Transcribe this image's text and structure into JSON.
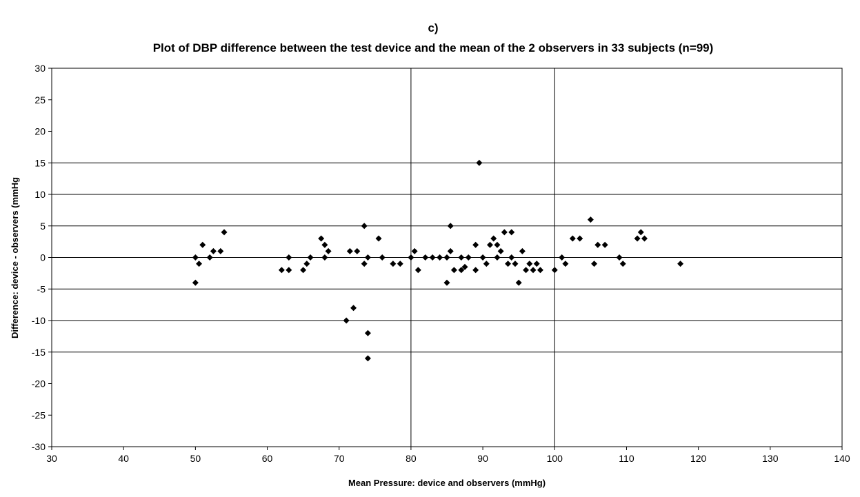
{
  "chart_data": {
    "type": "scatter",
    "panel_label": "c)",
    "title": "Plot of DBP difference between the test device and the mean of  the 2 observers in 33 subjects (n=99)",
    "xlabel": "Mean Pressure: device and observers (mmHg)",
    "ylabel": "Difference: device - observers (mmHg",
    "xlim": [
      30,
      140
    ],
    "ylim": [
      -30,
      30
    ],
    "x_ticks": [
      30,
      40,
      50,
      60,
      70,
      80,
      90,
      100,
      110,
      120,
      130,
      140
    ],
    "y_ticks": [
      30,
      25,
      20,
      15,
      10,
      5,
      0,
      -5,
      -10,
      -15,
      -20,
      -25,
      -30
    ],
    "horizontal_gridlines_at": [
      15,
      10,
      5,
      0,
      -5,
      -10,
      -15
    ],
    "vertical_gridlines_at": [
      80,
      100
    ],
    "marker": "diamond",
    "marker_color": "#000000",
    "series": [
      {
        "points": [
          [
            50,
            0
          ],
          [
            50.5,
            -1
          ],
          [
            50,
            -4
          ],
          [
            51,
            2
          ],
          [
            52,
            0
          ],
          [
            52.5,
            1
          ],
          [
            53.5,
            1
          ],
          [
            54,
            4
          ],
          [
            62,
            -2
          ],
          [
            63,
            0
          ],
          [
            63,
            -2
          ],
          [
            65,
            -2
          ],
          [
            65.5,
            -1
          ],
          [
            66,
            0
          ],
          [
            67.5,
            3
          ],
          [
            68,
            2
          ],
          [
            68,
            0
          ],
          [
            68.5,
            1
          ],
          [
            71,
            -10
          ],
          [
            71.5,
            1
          ],
          [
            72,
            -8
          ],
          [
            72.5,
            1
          ],
          [
            73.5,
            5
          ],
          [
            73.5,
            -1
          ],
          [
            74,
            0
          ],
          [
            74,
            -12
          ],
          [
            74,
            -16
          ],
          [
            75.5,
            3
          ],
          [
            76,
            0
          ],
          [
            77.5,
            -1
          ],
          [
            78.5,
            -1
          ],
          [
            80,
            0
          ],
          [
            80.5,
            1
          ],
          [
            81,
            -2
          ],
          [
            82,
            0
          ],
          [
            83,
            0
          ],
          [
            84,
            0
          ],
          [
            85,
            0
          ],
          [
            85,
            -4
          ],
          [
            85.5,
            5
          ],
          [
            85.5,
            1
          ],
          [
            86,
            -2
          ],
          [
            87,
            0
          ],
          [
            87,
            -2
          ],
          [
            87.5,
            -1.5
          ],
          [
            88,
            0
          ],
          [
            89,
            2
          ],
          [
            89,
            -2
          ],
          [
            89.5,
            15
          ],
          [
            90,
            0
          ],
          [
            90.5,
            -1
          ],
          [
            91,
            2
          ],
          [
            91.5,
            3
          ],
          [
            92,
            2
          ],
          [
            92,
            0
          ],
          [
            92.5,
            1
          ],
          [
            93,
            4
          ],
          [
            93.5,
            -1
          ],
          [
            94,
            4
          ],
          [
            94,
            0
          ],
          [
            94.5,
            -1
          ],
          [
            95,
            -4
          ],
          [
            95.5,
            1
          ],
          [
            96,
            -2
          ],
          [
            96.5,
            -1
          ],
          [
            97,
            -2
          ],
          [
            97.5,
            -1
          ],
          [
            98,
            -2
          ],
          [
            100,
            -2
          ],
          [
            101,
            0
          ],
          [
            101.5,
            -1
          ],
          [
            102.5,
            3
          ],
          [
            103.5,
            3
          ],
          [
            105,
            6
          ],
          [
            105.5,
            -1
          ],
          [
            106,
            2
          ],
          [
            107,
            2
          ],
          [
            109,
            0
          ],
          [
            109.5,
            -1
          ],
          [
            111.5,
            3
          ],
          [
            112,
            4
          ],
          [
            112.5,
            3
          ],
          [
            117.5,
            -1
          ]
        ]
      }
    ]
  }
}
